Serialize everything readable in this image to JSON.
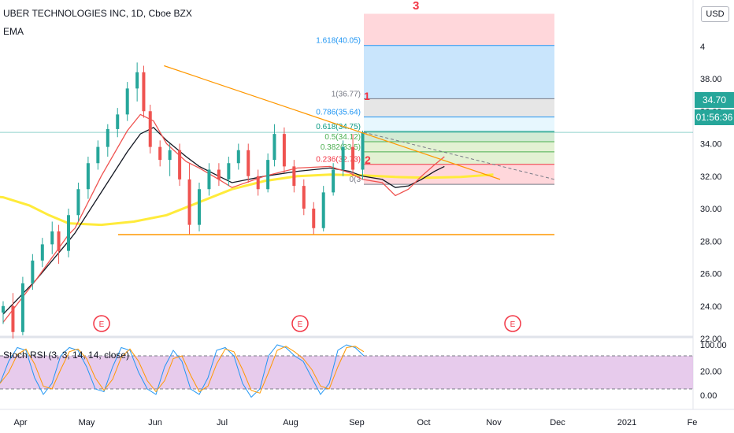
{
  "header": {
    "symbol_title": "UBER TECHNOLOGIES INC, 1D, Cboe BZX",
    "indicator": "EMA",
    "currency_button": "USD"
  },
  "price_labels": {
    "last_price": "34.70",
    "countdown": "01:56:36"
  },
  "stoch_label": "Stoch RSI (3, 3, 14, 14, close)",
  "axis": {
    "price_ticks": [
      "4",
      "38.00",
      "36.00",
      "34.00",
      "32.00",
      "30.00",
      "28.00",
      "26.00",
      "24.00",
      "22.00",
      "20.00"
    ],
    "osc_ticks": [
      "100.00",
      "0.00"
    ],
    "time_ticks": [
      "Apr",
      "May",
      "Jun",
      "Jul",
      "Aug",
      "Sep",
      "Oct",
      "Nov",
      "Dec",
      "2021",
      "Fe"
    ]
  },
  "fib_labels": [
    {
      "text": "1.618(40.05)",
      "color": "#2196f3"
    },
    {
      "text": "1(36.77)",
      "color": "#787b86"
    },
    {
      "text": "0.786(35.64)",
      "color": "#2196f3"
    },
    {
      "text": "0.618(34.75)",
      "color": "#089981"
    },
    {
      "text": "0.5(34.12)",
      "color": "#4caf50"
    },
    {
      "text": "0.382(33.5)",
      "color": "#4caf50"
    },
    {
      "text": "0.236(32.73)",
      "color": "#f23645"
    },
    {
      "text": "0(3",
      "color": "#787b86"
    }
  ],
  "wave_labels": [
    "1",
    "2",
    "3"
  ],
  "earnings_marker": "E",
  "colors": {
    "up": "#26a69a",
    "down": "#ef5350",
    "ema_fast": "#ef5350",
    "ema_mid": "#131722",
    "ema_slow": "#ffeb3b",
    "trendline": "#ff9800",
    "stoch_band": "#e1bee7",
    "stoch_k": "#2196f3",
    "stoch_d": "#ff9800"
  },
  "chart_data": {
    "type": "candlestick",
    "title": "UBER TECHNOLOGIES INC, 1D, Cboe BZX",
    "ylim": [
      20,
      40
    ],
    "y_ticks": [
      22,
      24,
      26,
      28,
      30,
      32,
      34,
      36,
      38
    ],
    "last_price": 34.7,
    "fib_levels": [
      {
        "ratio": 1.618,
        "price": 40.05
      },
      {
        "ratio": 1,
        "price": 36.77
      },
      {
        "ratio": 0.786,
        "price": 35.64
      },
      {
        "ratio": 0.618,
        "price": 34.75
      },
      {
        "ratio": 0.5,
        "price": 34.12
      },
      {
        "ratio": 0.382,
        "price": 33.5
      },
      {
        "ratio": 0.236,
        "price": 32.73
      },
      {
        "ratio": 0,
        "price": 31.5
      }
    ],
    "support_level": 28.4,
    "ema_slow_path": [
      [
        -10,
        30.9
      ],
      [
        0,
        30.7
      ],
      [
        8,
        30.2
      ],
      [
        14,
        29.6
      ],
      [
        20,
        29.1
      ],
      [
        30,
        29.0
      ],
      [
        40,
        29.2
      ],
      [
        50,
        29.6
      ],
      [
        60,
        30.4
      ],
      [
        70,
        31.2
      ],
      [
        80,
        31.7
      ],
      [
        90,
        32.0
      ],
      [
        100,
        32.1
      ],
      [
        110,
        32.05
      ],
      [
        120,
        31.95
      ],
      [
        130,
        31.9
      ],
      [
        140,
        31.95
      ],
      [
        150,
        32.1
      ]
    ],
    "ema_mid_path": [
      [
        0,
        23.5
      ],
      [
        10,
        25.6
      ],
      [
        20,
        28.0
      ],
      [
        22,
        28.5
      ],
      [
        30,
        31.0
      ],
      [
        38,
        33.5
      ],
      [
        42,
        34.6
      ],
      [
        46,
        35.0
      ],
      [
        50,
        34.2
      ],
      [
        56,
        33.2
      ],
      [
        60,
        32.6
      ],
      [
        66,
        32.0
      ],
      [
        70,
        31.6
      ],
      [
        80,
        32.0
      ],
      [
        90,
        32.3
      ],
      [
        100,
        32.5
      ],
      [
        106,
        32.3
      ],
      [
        110,
        32.0
      ],
      [
        116,
        31.8
      ],
      [
        120,
        31.3
      ],
      [
        124,
        31.4
      ],
      [
        128,
        31.8
      ],
      [
        132,
        32.3
      ],
      [
        135,
        32.6
      ]
    ],
    "ema_fast_path": [
      [
        0,
        23.0
      ],
      [
        10,
        25.6
      ],
      [
        20,
        28.4
      ],
      [
        22,
        28.8
      ],
      [
        30,
        32.0
      ],
      [
        38,
        34.8
      ],
      [
        42,
        35.8
      ],
      [
        46,
        35.4
      ],
      [
        50,
        34.0
      ],
      [
        56,
        32.9
      ],
      [
        60,
        32.5
      ],
      [
        66,
        31.8
      ],
      [
        70,
        31.3
      ],
      [
        80,
        32.0
      ],
      [
        90,
        32.5
      ],
      [
        100,
        32.6
      ],
      [
        106,
        32.2
      ],
      [
        110,
        31.8
      ],
      [
        116,
        31.6
      ],
      [
        120,
        30.8
      ],
      [
        124,
        31.2
      ],
      [
        128,
        32.0
      ],
      [
        132,
        32.7
      ],
      [
        135,
        33.2
      ]
    ],
    "trendlines": [
      {
        "from": [
          42,
          38.8
        ],
        "to": [
          140,
          31.8
        ]
      }
    ],
    "projection": {
      "from": [
        135,
        34.7
      ],
      "to": [
        203,
        31.8
      ]
    },
    "earnings_days": [
      24,
      82,
      141
    ],
    "candles": [
      {
        "t": 0,
        "o": 23.6,
        "h": 24.3,
        "l": 22.9,
        "c": 24.0
      },
      {
        "t": 3,
        "o": 24.0,
        "h": 24.8,
        "l": 22.0,
        "c": 22.4
      },
      {
        "t": 6,
        "o": 22.4,
        "h": 25.8,
        "l": 22.2,
        "c": 25.4
      },
      {
        "t": 9,
        "o": 25.4,
        "h": 27.2,
        "l": 25.0,
        "c": 26.8
      },
      {
        "t": 12,
        "o": 26.8,
        "h": 28.2,
        "l": 26.4,
        "c": 27.8
      },
      {
        "t": 15,
        "o": 27.8,
        "h": 29.2,
        "l": 27.2,
        "c": 28.6
      },
      {
        "t": 17,
        "o": 28.6,
        "h": 29.0,
        "l": 26.6,
        "c": 27.4
      },
      {
        "t": 20,
        "o": 27.4,
        "h": 30.0,
        "l": 27.0,
        "c": 29.6
      },
      {
        "t": 23,
        "o": 29.6,
        "h": 31.6,
        "l": 29.2,
        "c": 31.2
      },
      {
        "t": 26,
        "o": 31.2,
        "h": 33.2,
        "l": 30.6,
        "c": 32.8
      },
      {
        "t": 29,
        "o": 32.8,
        "h": 34.2,
        "l": 32.4,
        "c": 33.8
      },
      {
        "t": 32,
        "o": 33.8,
        "h": 35.2,
        "l": 33.2,
        "c": 34.9
      },
      {
        "t": 35,
        "o": 34.9,
        "h": 36.2,
        "l": 34.4,
        "c": 35.8
      },
      {
        "t": 38,
        "o": 35.8,
        "h": 37.8,
        "l": 35.4,
        "c": 37.4
      },
      {
        "t": 41,
        "o": 37.4,
        "h": 39.0,
        "l": 36.6,
        "c": 38.4
      },
      {
        "t": 43,
        "o": 38.4,
        "h": 38.8,
        "l": 35.6,
        "c": 36.0
      },
      {
        "t": 45,
        "o": 36.0,
        "h": 36.4,
        "l": 33.4,
        "c": 33.8
      },
      {
        "t": 48,
        "o": 33.8,
        "h": 34.2,
        "l": 32.6,
        "c": 33.0
      },
      {
        "t": 51,
        "o": 33.0,
        "h": 34.0,
        "l": 32.0,
        "c": 33.6
      },
      {
        "t": 54,
        "o": 33.6,
        "h": 34.0,
        "l": 31.4,
        "c": 31.8
      },
      {
        "t": 57,
        "o": 31.8,
        "h": 32.8,
        "l": 28.4,
        "c": 29.0
      },
      {
        "t": 60,
        "o": 29.0,
        "h": 31.6,
        "l": 28.6,
        "c": 31.2
      },
      {
        "t": 63,
        "o": 31.2,
        "h": 32.8,
        "l": 30.8,
        "c": 32.4
      },
      {
        "t": 66,
        "o": 32.4,
        "h": 32.8,
        "l": 31.4,
        "c": 31.8
      },
      {
        "t": 69,
        "o": 31.8,
        "h": 33.2,
        "l": 31.4,
        "c": 32.8
      },
      {
        "t": 72,
        "o": 32.8,
        "h": 34.0,
        "l": 32.4,
        "c": 33.6
      },
      {
        "t": 75,
        "o": 33.6,
        "h": 34.0,
        "l": 31.6,
        "c": 32.0
      },
      {
        "t": 78,
        "o": 32.0,
        "h": 32.4,
        "l": 30.8,
        "c": 31.2
      },
      {
        "t": 81,
        "o": 31.2,
        "h": 33.4,
        "l": 31.0,
        "c": 33.0
      },
      {
        "t": 83,
        "o": 33.0,
        "h": 35.2,
        "l": 32.6,
        "c": 34.6
      },
      {
        "t": 86,
        "o": 34.6,
        "h": 35.0,
        "l": 32.2,
        "c": 32.6
      },
      {
        "t": 89,
        "o": 32.6,
        "h": 33.0,
        "l": 31.0,
        "c": 31.4
      },
      {
        "t": 92,
        "o": 31.4,
        "h": 31.8,
        "l": 29.6,
        "c": 30.0
      },
      {
        "t": 95,
        "o": 30.0,
        "h": 30.4,
        "l": 28.4,
        "c": 28.8
      },
      {
        "t": 98,
        "o": 28.8,
        "h": 31.4,
        "l": 28.6,
        "c": 31.0
      },
      {
        "t": 101,
        "o": 31.0,
        "h": 32.8,
        "l": 30.8,
        "c": 32.4
      },
      {
        "t": 104,
        "o": 32.4,
        "h": 34.2,
        "l": 32.0,
        "c": 33.8
      },
      {
        "t": 107,
        "o": 33.8,
        "h": 34.6,
        "l": 32.0,
        "c": 32.4
      },
      {
        "t": 110,
        "o": 32.4,
        "h": 34.8,
        "l": 31.8,
        "c": 34.7
      }
    ]
  }
}
